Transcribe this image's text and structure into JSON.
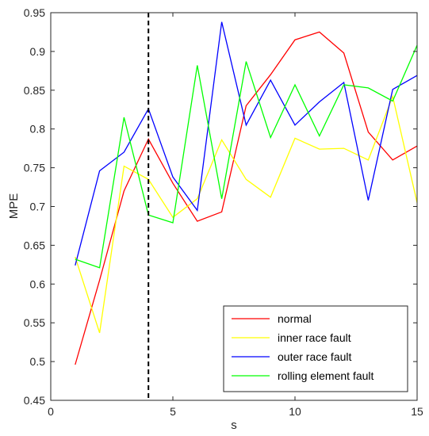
{
  "chart_data": {
    "type": "line",
    "title": "",
    "xlabel": "s",
    "ylabel": "MPE",
    "xlim": [
      0,
      15
    ],
    "ylim": [
      0.45,
      0.95
    ],
    "xticks": [
      0,
      5,
      10,
      15
    ],
    "xtick_labels": [
      "0",
      "5",
      "10",
      "15"
    ],
    "yticks": [
      0.45,
      0.5,
      0.55,
      0.6,
      0.65,
      0.7,
      0.75,
      0.8,
      0.85,
      0.9,
      0.95
    ],
    "ytick_labels": [
      "0.45",
      "0.5",
      "0.55",
      "0.6",
      "0.65",
      "0.7",
      "0.75",
      "0.8",
      "0.85",
      "0.9",
      "0.95"
    ],
    "grid": false,
    "legend_position": "bottom-right",
    "vline": {
      "x": 4,
      "style": "dashed",
      "color": "#000000"
    },
    "x": [
      1,
      2,
      3,
      4,
      5,
      6,
      7,
      8,
      9,
      10,
      11,
      12,
      13,
      14,
      15
    ],
    "series": [
      {
        "name": "normal",
        "color": "#ff0000",
        "values": [
          0.496,
          0.605,
          0.72,
          0.787,
          0.73,
          0.681,
          0.693,
          0.83,
          0.87,
          0.915,
          0.925,
          0.898,
          0.796,
          0.76,
          0.778
        ]
      },
      {
        "name": "inner race fault",
        "color": "#ffff00",
        "values": [
          0.635,
          0.537,
          0.752,
          0.735,
          0.686,
          0.71,
          0.786,
          0.735,
          0.712,
          0.788,
          0.774,
          0.775,
          0.76,
          0.842,
          0.705
        ]
      },
      {
        "name": "outer race fault",
        "color": "#0000ff",
        "values": [
          0.624,
          0.746,
          0.77,
          0.826,
          0.738,
          0.695,
          0.938,
          0.805,
          0.863,
          0.805,
          0.835,
          0.86,
          0.708,
          0.851,
          0.869
        ]
      },
      {
        "name": "rolling element fault",
        "color": "#00ff00",
        "values": [
          0.632,
          0.621,
          0.815,
          0.689,
          0.679,
          0.882,
          0.71,
          0.887,
          0.789,
          0.857,
          0.791,
          0.857,
          0.853,
          0.836,
          0.908
        ]
      }
    ]
  }
}
